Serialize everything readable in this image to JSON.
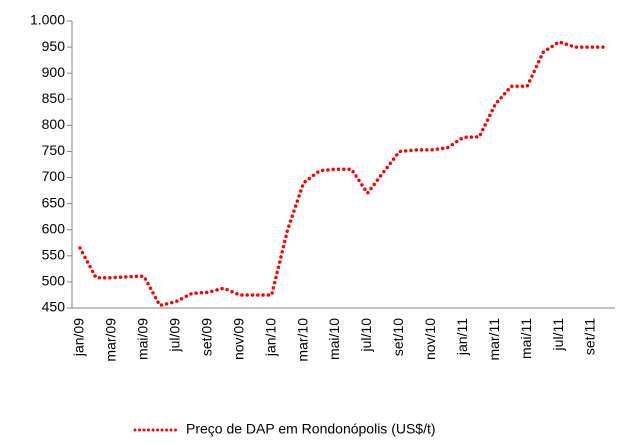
{
  "chart_data": {
    "type": "line",
    "categories": [
      "jan/09",
      null,
      "mar/09",
      null,
      "mai/09",
      null,
      "jul/09",
      null,
      "set/09",
      null,
      "nov/09",
      null,
      "jan/10",
      null,
      "mar/10",
      null,
      "mai/10",
      null,
      "jul/10",
      null,
      "set/10",
      null,
      "nov/10",
      null,
      "jan/11",
      null,
      "mar/11",
      null,
      "mai/11",
      null,
      "jul/11",
      null,
      "set/11",
      null
    ],
    "series": [
      {
        "name": "Preço de DAP em Rondonópolis (US$/t)",
        "color": "#ff0000",
        "values": [
          565,
          508,
          508,
          510,
          511,
          455,
          462,
          478,
          480,
          488,
          475,
          475,
          475,
          600,
          690,
          713,
          716,
          716,
          670,
          710,
          750,
          753,
          753,
          757,
          777,
          778,
          840,
          875,
          875,
          940,
          960,
          950,
          950,
          950
        ]
      }
    ],
    "ylim": [
      450,
      1000
    ],
    "yticks": [
      450,
      500,
      550,
      600,
      650,
      700,
      750,
      800,
      850,
      900,
      950,
      {
        "value": 1000,
        "label": "1.000"
      }
    ],
    "grid": false,
    "legend": "bottom"
  }
}
